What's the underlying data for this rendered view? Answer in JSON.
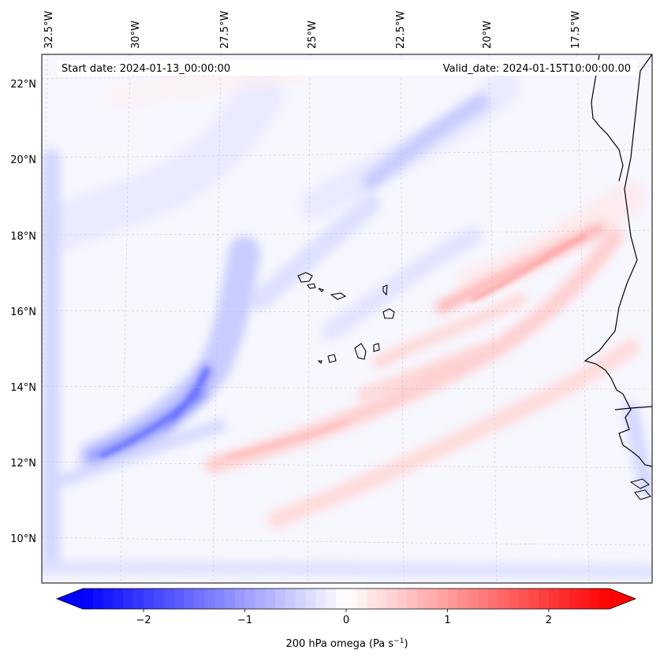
{
  "map": {
    "start_date_label": "Start date: 2024-01-13_00:00:00",
    "valid_date_label": "Valid_date: 2024-01-15T10:00:00.00",
    "longitude_labels": [
      "32.5°W",
      "30°W",
      "27.5°W",
      "25°W",
      "22.5°W",
      "20°W",
      "17.5°W"
    ],
    "latitude_labels": [
      "22°N",
      "20°N",
      "18°N",
      "16°N",
      "14°N",
      "12°N",
      "10°N"
    ],
    "features": [
      "Cape Verde Islands",
      "West African coastline"
    ],
    "field": "200 hPa omega"
  },
  "colorbar": {
    "label_prefix": "200 hPa omega (Pa s",
    "label_exponent": "−1",
    "label_suffix": ")",
    "range": [
      -2.6,
      2.6
    ],
    "tick_values": [
      -2,
      -1,
      0,
      1,
      2
    ],
    "tick_labels": [
      "−2",
      "−1",
      "0",
      "1",
      "2"
    ],
    "colormap": "bwr",
    "color_min": "#0000ff",
    "color_mid": "#ffffff",
    "color_max": "#ff0000"
  }
}
